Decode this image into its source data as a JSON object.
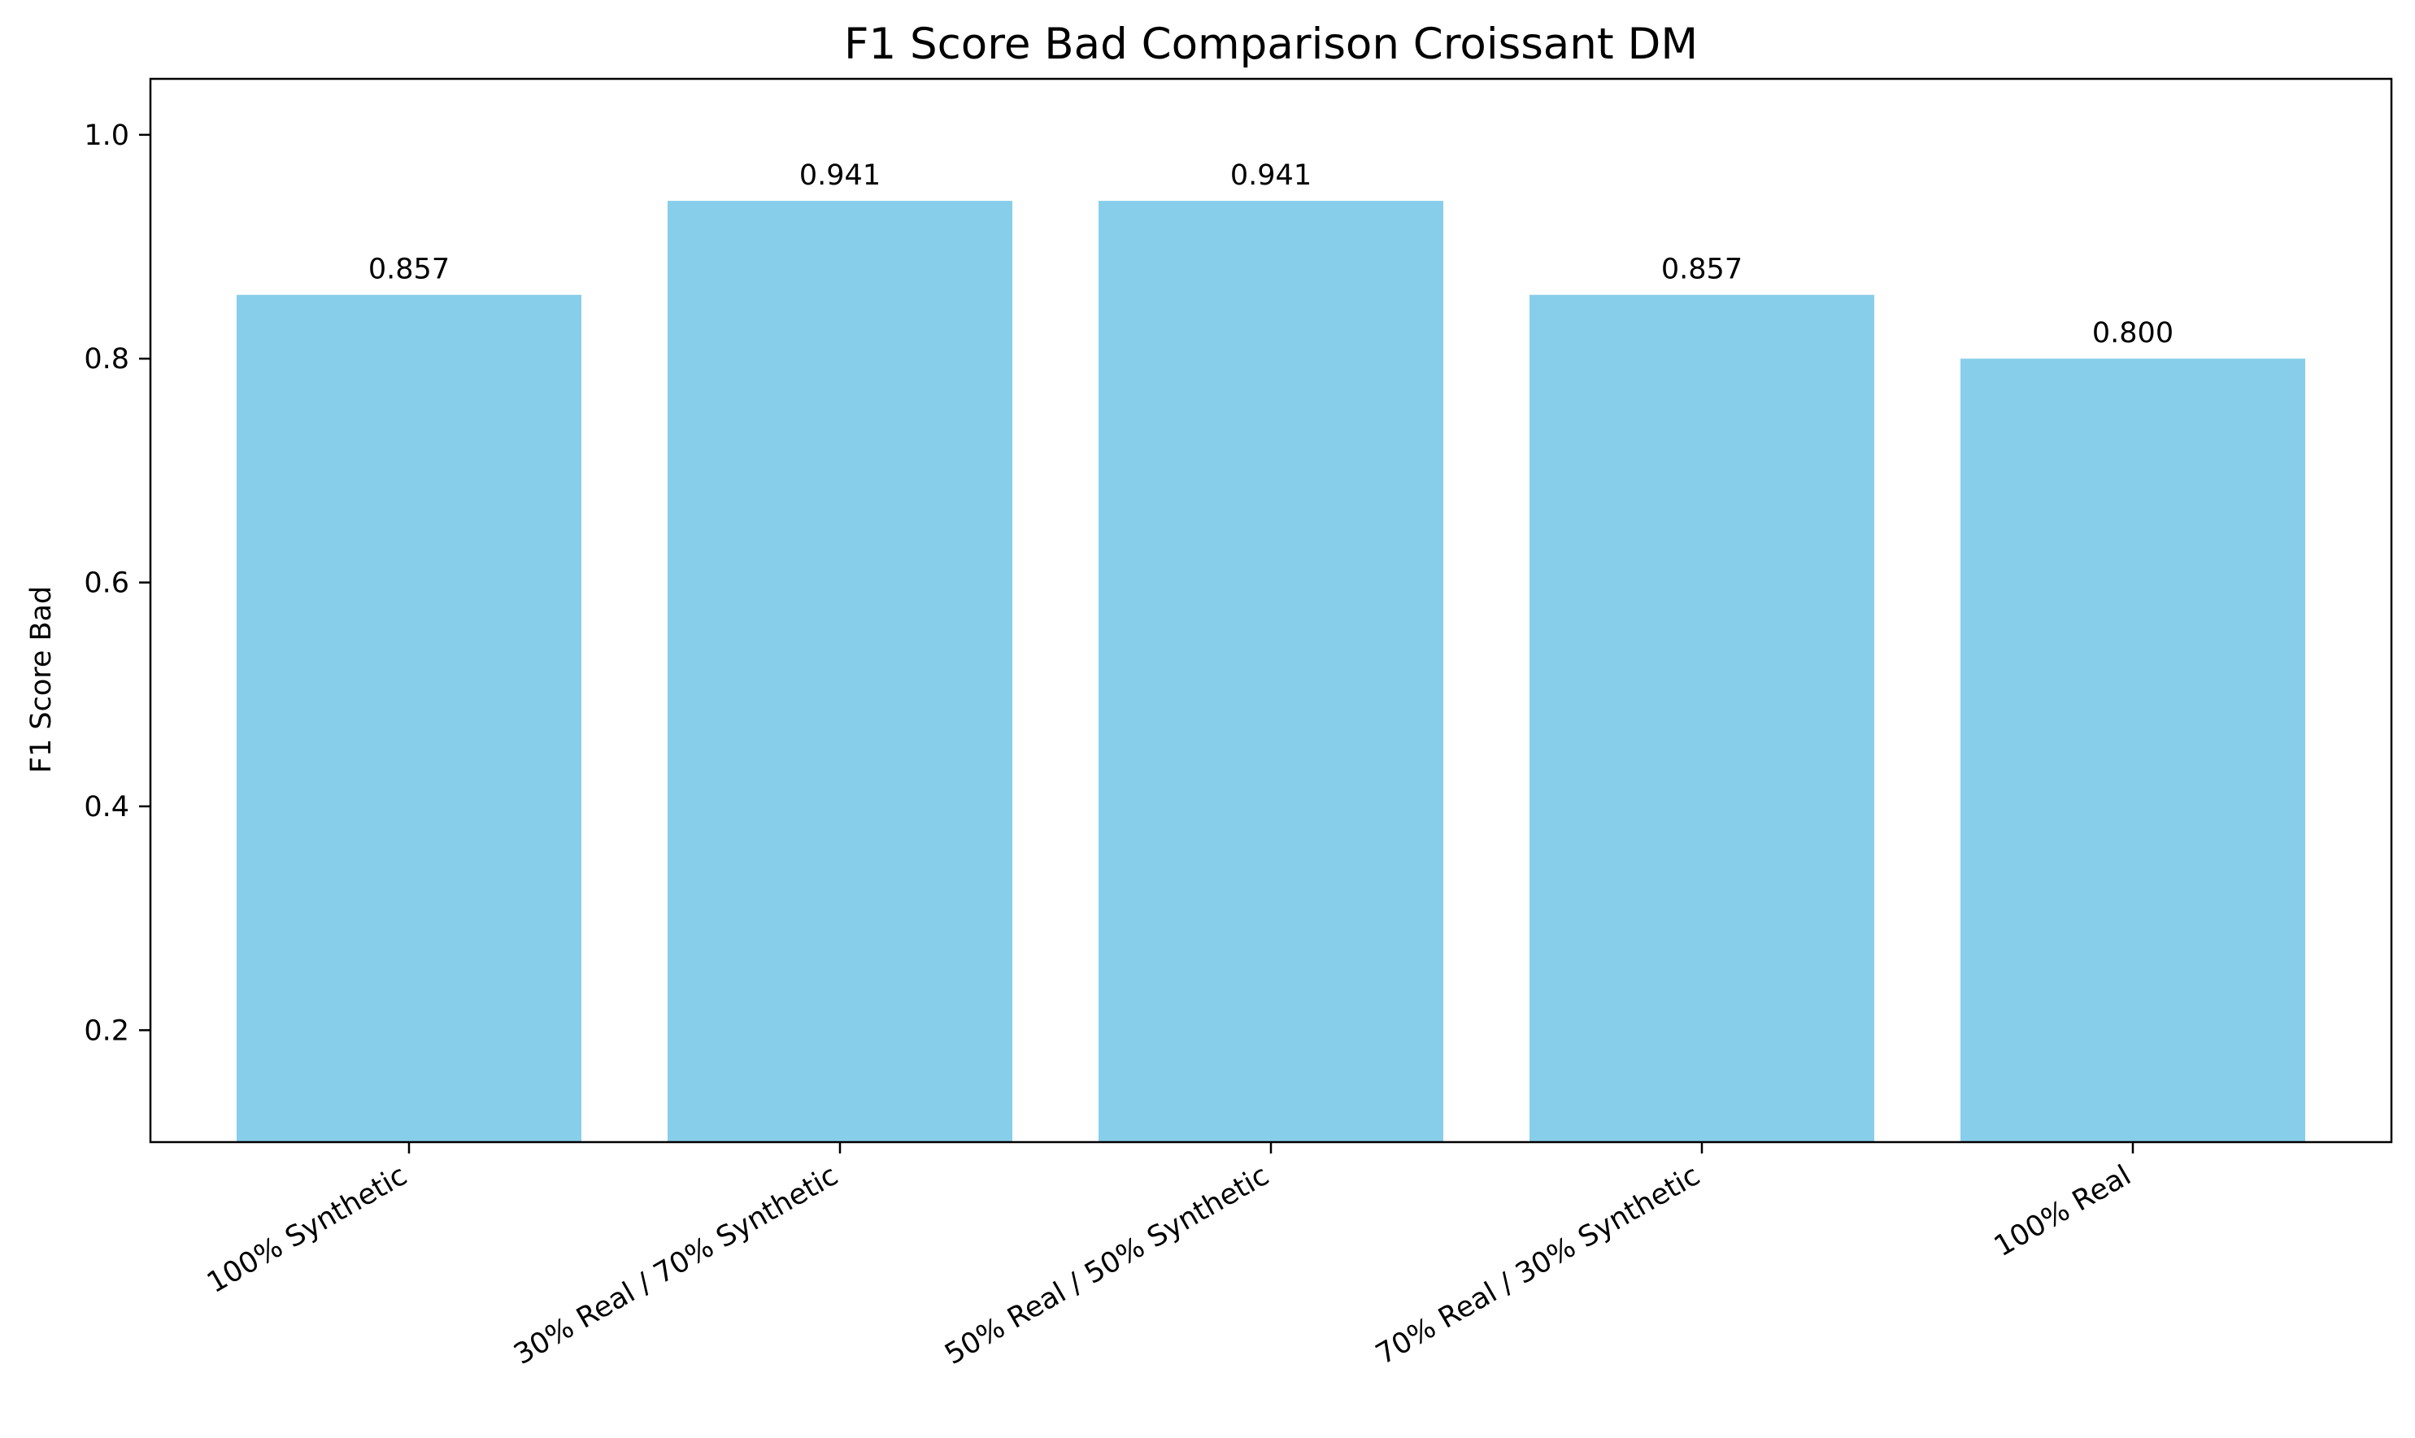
{
  "chart_data": {
    "type": "bar",
    "title": "F1 Score Bad Comparison Croissant DM",
    "xlabel": "",
    "ylabel": "F1 Score Bad",
    "categories": [
      "100% Synthetic",
      "30% Real / 70% Synthetic",
      "50% Real / 50% Synthetic",
      "70% Real / 30% Synthetic",
      "100% Real"
    ],
    "values": [
      0.857,
      0.941,
      0.941,
      0.857,
      0.8
    ],
    "data_labels": [
      "0.857",
      "0.941",
      "0.941",
      "0.857",
      "0.800"
    ],
    "ylim": [
      0.1,
      1.05
    ],
    "yticks": [
      0.2,
      0.4,
      0.6,
      0.8,
      1.0
    ],
    "ytick_labels": [
      "0.2",
      "0.4",
      "0.6",
      "0.8",
      "1.0"
    ],
    "bar_color": "#87CEEB",
    "grid": false,
    "legend": "none"
  }
}
